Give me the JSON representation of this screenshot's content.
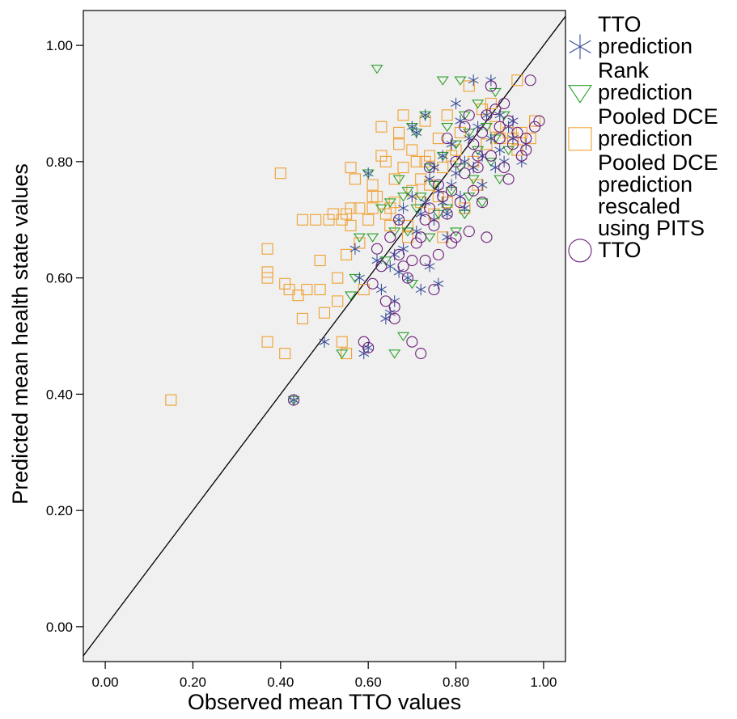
{
  "chart_data": {
    "type": "scatter",
    "xlabel": "Observed mean TTO values",
    "ylabel": "Predicted mean health state values",
    "xlim": [
      -0.05,
      1.05
    ],
    "ylim": [
      -0.06,
      1.06
    ],
    "x_ticks": [
      "0.00",
      "0.20",
      "0.40",
      "0.60",
      "0.80",
      "1.00"
    ],
    "y_ticks": [
      "0.00",
      "0.20",
      "0.40",
      "0.60",
      "0.80",
      "1.00"
    ],
    "x_tick_values": [
      0,
      0.2,
      0.4,
      0.6,
      0.8,
      1.0
    ],
    "y_tick_values": [
      0,
      0.2,
      0.4,
      0.6,
      0.8,
      1.0
    ],
    "grid": false,
    "reference_line": "y = x",
    "background": "#f0f0f0",
    "legend_position": "right",
    "series": [
      {
        "name": "TTO prediction",
        "marker": "asterisk",
        "color": "#3a4f9a",
        "points": [
          [
            0.43,
            0.39
          ],
          [
            0.5,
            0.49
          ],
          [
            0.57,
            0.65
          ],
          [
            0.58,
            0.6
          ],
          [
            0.59,
            0.47
          ],
          [
            0.6,
            0.48
          ],
          [
            0.6,
            0.78
          ],
          [
            0.62,
            0.63
          ],
          [
            0.63,
            0.58
          ],
          [
            0.64,
            0.53
          ],
          [
            0.65,
            0.54
          ],
          [
            0.65,
            0.62
          ],
          [
            0.66,
            0.56
          ],
          [
            0.66,
            0.64
          ],
          [
            0.67,
            0.61
          ],
          [
            0.67,
            0.7
          ],
          [
            0.68,
            0.65
          ],
          [
            0.68,
            0.72
          ],
          [
            0.69,
            0.6
          ],
          [
            0.7,
            0.74
          ],
          [
            0.7,
            0.86
          ],
          [
            0.71,
            0.68
          ],
          [
            0.71,
            0.85
          ],
          [
            0.72,
            0.71
          ],
          [
            0.72,
            0.58
          ],
          [
            0.73,
            0.73
          ],
          [
            0.73,
            0.88
          ],
          [
            0.74,
            0.77
          ],
          [
            0.74,
            0.62
          ],
          [
            0.75,
            0.79
          ],
          [
            0.75,
            0.7
          ],
          [
            0.76,
            0.59
          ],
          [
            0.76,
            0.75
          ],
          [
            0.77,
            0.73
          ],
          [
            0.77,
            0.81
          ],
          [
            0.78,
            0.67
          ],
          [
            0.78,
            0.71
          ],
          [
            0.79,
            0.83
          ],
          [
            0.79,
            0.76
          ],
          [
            0.8,
            0.9
          ],
          [
            0.8,
            0.78
          ],
          [
            0.81,
            0.74
          ],
          [
            0.81,
            0.87
          ],
          [
            0.82,
            0.8
          ],
          [
            0.82,
            0.72
          ],
          [
            0.83,
            0.84
          ],
          [
            0.84,
            0.79
          ],
          [
            0.84,
            0.94
          ],
          [
            0.85,
            0.86
          ],
          [
            0.86,
            0.81
          ],
          [
            0.86,
            0.76
          ],
          [
            0.87,
            0.88
          ],
          [
            0.88,
            0.84
          ],
          [
            0.88,
            0.94
          ],
          [
            0.89,
            0.79
          ],
          [
            0.9,
            0.82
          ],
          [
            0.9,
            0.88
          ],
          [
            0.91,
            0.8
          ],
          [
            0.92,
            0.86
          ],
          [
            0.93,
            0.84
          ],
          [
            0.93,
            0.87
          ],
          [
            0.95,
            0.8
          ],
          [
            0.96,
            0.83
          ]
        ]
      },
      {
        "name": "Rank prediction",
        "marker": "triangle-down",
        "color": "#2ca02c",
        "points": [
          [
            0.43,
            0.39
          ],
          [
            0.54,
            0.47
          ],
          [
            0.56,
            0.57
          ],
          [
            0.57,
            0.6
          ],
          [
            0.58,
            0.67
          ],
          [
            0.6,
            0.78
          ],
          [
            0.61,
            0.67
          ],
          [
            0.62,
            0.96
          ],
          [
            0.63,
            0.72
          ],
          [
            0.64,
            0.63
          ],
          [
            0.65,
            0.73
          ],
          [
            0.66,
            0.47
          ],
          [
            0.66,
            0.68
          ],
          [
            0.67,
            0.77
          ],
          [
            0.68,
            0.74
          ],
          [
            0.68,
            0.5
          ],
          [
            0.69,
            0.68
          ],
          [
            0.69,
            0.75
          ],
          [
            0.7,
            0.86
          ],
          [
            0.7,
            0.59
          ],
          [
            0.71,
            0.72
          ],
          [
            0.71,
            0.85
          ],
          [
            0.72,
            0.74
          ],
          [
            0.73,
            0.88
          ],
          [
            0.74,
            0.67
          ],
          [
            0.74,
            0.79
          ],
          [
            0.75,
            0.76
          ],
          [
            0.76,
            0.71
          ],
          [
            0.77,
            0.94
          ],
          [
            0.77,
            0.81
          ],
          [
            0.78,
            0.72
          ],
          [
            0.78,
            0.86
          ],
          [
            0.79,
            0.75
          ],
          [
            0.8,
            0.83
          ],
          [
            0.8,
            0.68
          ],
          [
            0.81,
            0.94
          ],
          [
            0.81,
            0.79
          ],
          [
            0.82,
            0.71
          ],
          [
            0.82,
            0.88
          ],
          [
            0.83,
            0.85
          ],
          [
            0.83,
            0.74
          ],
          [
            0.84,
            0.77
          ],
          [
            0.85,
            0.9
          ],
          [
            0.85,
            0.82
          ],
          [
            0.86,
            0.73
          ],
          [
            0.87,
            0.86
          ],
          [
            0.88,
            0.8
          ],
          [
            0.89,
            0.92
          ],
          [
            0.89,
            0.84
          ],
          [
            0.9,
            0.77
          ],
          [
            0.91,
            0.88
          ],
          [
            0.92,
            0.82
          ]
        ]
      },
      {
        "name": "Pooled DCE prediction",
        "marker": "square",
        "color": "#f0a030",
        "points": [
          [
            0.15,
            0.39
          ],
          [
            0.37,
            0.65
          ],
          [
            0.37,
            0.6
          ],
          [
            0.37,
            0.61
          ],
          [
            0.37,
            0.49
          ],
          [
            0.4,
            0.78
          ],
          [
            0.41,
            0.47
          ],
          [
            0.41,
            0.59
          ],
          [
            0.42,
            0.58
          ],
          [
            0.44,
            0.57
          ],
          [
            0.45,
            0.7
          ],
          [
            0.45,
            0.53
          ],
          [
            0.46,
            0.58
          ],
          [
            0.48,
            0.7
          ],
          [
            0.49,
            0.63
          ],
          [
            0.49,
            0.58
          ],
          [
            0.5,
            0.54
          ],
          [
            0.51,
            0.7
          ],
          [
            0.52,
            0.71
          ],
          [
            0.53,
            0.6
          ],
          [
            0.53,
            0.56
          ],
          [
            0.54,
            0.7
          ],
          [
            0.54,
            0.49
          ],
          [
            0.55,
            0.47
          ],
          [
            0.55,
            0.71
          ],
          [
            0.55,
            0.64
          ],
          [
            0.56,
            0.69
          ],
          [
            0.56,
            0.72
          ],
          [
            0.56,
            0.79
          ],
          [
            0.57,
            0.77
          ],
          [
            0.58,
            0.66
          ],
          [
            0.58,
            0.72
          ],
          [
            0.59,
            0.58
          ],
          [
            0.6,
            0.7
          ],
          [
            0.61,
            0.72
          ],
          [
            0.61,
            0.76
          ],
          [
            0.61,
            0.74
          ],
          [
            0.62,
            0.74
          ],
          [
            0.63,
            0.81
          ],
          [
            0.63,
            0.86
          ],
          [
            0.64,
            0.8
          ],
          [
            0.64,
            0.71
          ],
          [
            0.65,
            0.69
          ],
          [
            0.65,
            0.72
          ],
          [
            0.66,
            0.73
          ],
          [
            0.66,
            0.77
          ],
          [
            0.67,
            0.85
          ],
          [
            0.67,
            0.83
          ],
          [
            0.68,
            0.79
          ],
          [
            0.68,
            0.88
          ],
          [
            0.69,
            0.69
          ],
          [
            0.69,
            0.67
          ],
          [
            0.7,
            0.75
          ],
          [
            0.7,
            0.82
          ],
          [
            0.71,
            0.8
          ],
          [
            0.72,
            0.77
          ],
          [
            0.72,
            0.73
          ],
          [
            0.73,
            0.87
          ],
          [
            0.73,
            0.8
          ],
          [
            0.74,
            0.76
          ],
          [
            0.74,
            0.81
          ],
          [
            0.75,
            0.71
          ],
          [
            0.76,
            0.74
          ],
          [
            0.76,
            0.84
          ],
          [
            0.77,
            0.67
          ],
          [
            0.77,
            0.79
          ],
          [
            0.78,
            0.73
          ],
          [
            0.78,
            0.88
          ],
          [
            0.79,
            0.81
          ],
          [
            0.8,
            0.82
          ],
          [
            0.81,
            0.85
          ],
          [
            0.82,
            0.72
          ],
          [
            0.83,
            0.93
          ],
          [
            0.84,
            0.8
          ],
          [
            0.85,
            0.76
          ],
          [
            0.86,
            0.89
          ],
          [
            0.87,
            0.83
          ],
          [
            0.88,
            0.9
          ],
          [
            0.89,
            0.86
          ],
          [
            0.9,
            0.84
          ],
          [
            0.92,
            0.85
          ],
          [
            0.93,
            0.84
          ],
          [
            0.94,
            0.94
          ],
          [
            0.94,
            0.82
          ],
          [
            0.95,
            0.85
          ],
          [
            0.97,
            0.84
          ],
          [
            0.98,
            0.87
          ]
        ]
      },
      {
        "name": "Pooled DCE prediction rescaled using PITS TTO",
        "marker": "circle",
        "color": "#6a1b7a",
        "points": [
          [
            0.43,
            0.39
          ],
          [
            0.59,
            0.49
          ],
          [
            0.6,
            0.48
          ],
          [
            0.61,
            0.59
          ],
          [
            0.62,
            0.65
          ],
          [
            0.63,
            0.62
          ],
          [
            0.64,
            0.56
          ],
          [
            0.65,
            0.67
          ],
          [
            0.66,
            0.53
          ],
          [
            0.66,
            0.55
          ],
          [
            0.67,
            0.64
          ],
          [
            0.67,
            0.7
          ],
          [
            0.68,
            0.62
          ],
          [
            0.69,
            0.6
          ],
          [
            0.7,
            0.49
          ],
          [
            0.7,
            0.63
          ],
          [
            0.71,
            0.66
          ],
          [
            0.72,
            0.47
          ],
          [
            0.72,
            0.67
          ],
          [
            0.73,
            0.7
          ],
          [
            0.73,
            0.63
          ],
          [
            0.74,
            0.72
          ],
          [
            0.74,
            0.79
          ],
          [
            0.75,
            0.69
          ],
          [
            0.75,
            0.58
          ],
          [
            0.76,
            0.64
          ],
          [
            0.76,
            0.76
          ],
          [
            0.77,
            0.74
          ],
          [
            0.78,
            0.71
          ],
          [
            0.78,
            0.84
          ],
          [
            0.79,
            0.66
          ],
          [
            0.79,
            0.75
          ],
          [
            0.8,
            0.8
          ],
          [
            0.8,
            0.67
          ],
          [
            0.81,
            0.73
          ],
          [
            0.82,
            0.86
          ],
          [
            0.82,
            0.78
          ],
          [
            0.83,
            0.88
          ],
          [
            0.83,
            0.68
          ],
          [
            0.84,
            0.83
          ],
          [
            0.84,
            0.75
          ],
          [
            0.85,
            0.79
          ],
          [
            0.85,
            0.81
          ],
          [
            0.86,
            0.73
          ],
          [
            0.86,
            0.85
          ],
          [
            0.87,
            0.88
          ],
          [
            0.87,
            0.67
          ],
          [
            0.88,
            0.93
          ],
          [
            0.88,
            0.81
          ],
          [
            0.89,
            0.89
          ],
          [
            0.9,
            0.86
          ],
          [
            0.9,
            0.84
          ],
          [
            0.91,
            0.79
          ],
          [
            0.91,
            0.9
          ],
          [
            0.92,
            0.77
          ],
          [
            0.92,
            0.87
          ],
          [
            0.93,
            0.83
          ],
          [
            0.94,
            0.85
          ],
          [
            0.95,
            0.81
          ],
          [
            0.96,
            0.82
          ],
          [
            0.96,
            0.84
          ],
          [
            0.97,
            0.94
          ],
          [
            0.98,
            0.86
          ],
          [
            0.99,
            0.87
          ]
        ]
      }
    ]
  }
}
